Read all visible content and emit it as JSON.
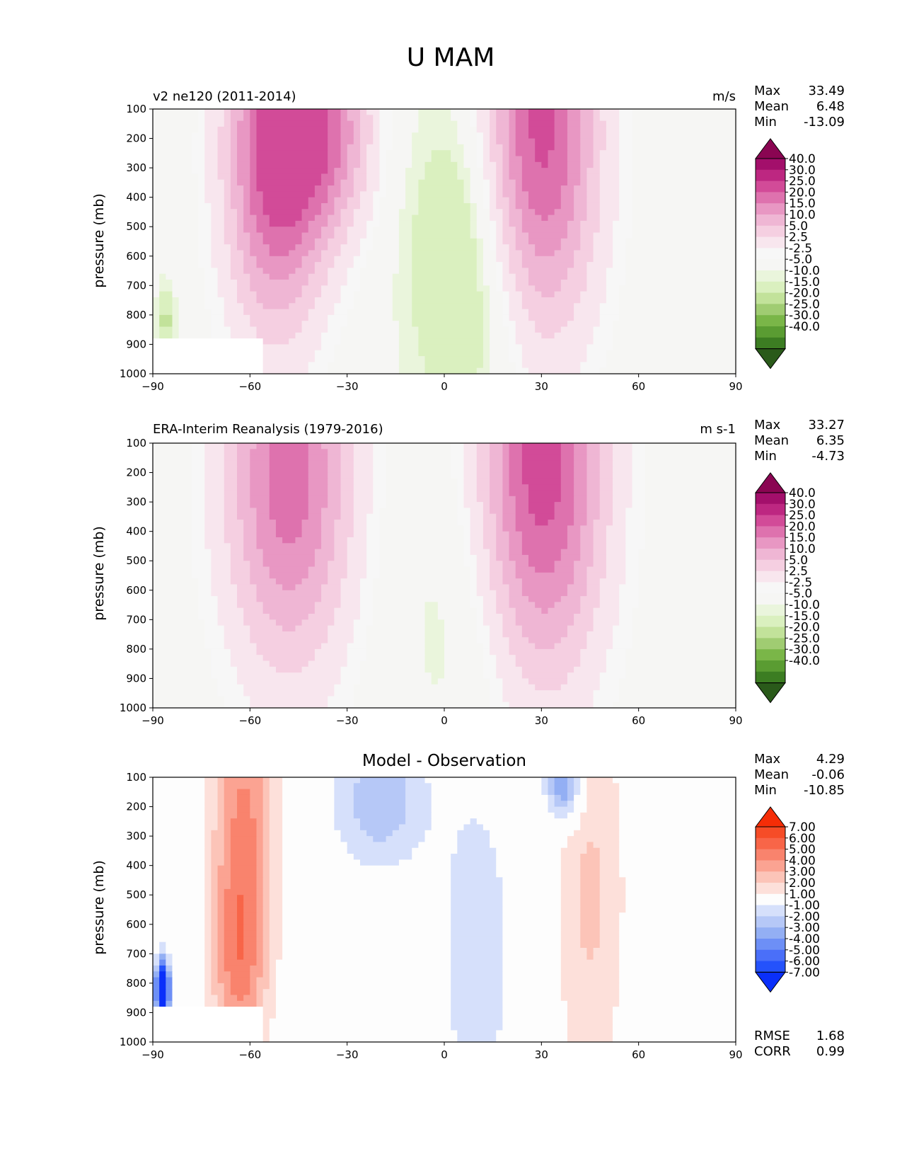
{
  "figure_title": "U MAM",
  "colors": {
    "model_obs": [
      "#2a5a1a",
      "#3c7d22",
      "#5a9c32",
      "#7ab648",
      "#a0cc72",
      "#c2e29a",
      "#daf0bf",
      "#eaf5dc",
      "#f6f6f4",
      "#f7f7f7",
      "#f8e6ee",
      "#f5cfe1",
      "#efb6d4",
      "#e897c3",
      "#de72ae",
      "#d24b98",
      "#bd2781",
      "#a30f6b",
      "#8a0552"
    ],
    "diff": [
      "#0a2ffa",
      "#2452fb",
      "#4a6ff9",
      "#6d8ff6",
      "#93aff4",
      "#b6c8f7",
      "#d6e0fb",
      "#fdfdfd",
      "#fde0da",
      "#fcc4b8",
      "#fba392",
      "#f9836d",
      "#f86548",
      "#f64c27",
      "#f52d07"
    ]
  },
  "chart_data": [
    {
      "id": "model",
      "type": "contour",
      "title": "v2 ne120 (2011-2014)",
      "units": "m/s",
      "xlabel": "",
      "ylabel": "pressure (mb)",
      "xlim": [
        -90,
        90
      ],
      "ylim": [
        1000,
        100
      ],
      "xticks": [
        "−90",
        "−60",
        "−30",
        "0",
        "30",
        "60",
        "90"
      ],
      "yticks": [
        "100",
        "200",
        "300",
        "400",
        "500",
        "600",
        "700",
        "800",
        "900",
        "1000"
      ],
      "stats": [
        {
          "label": "Max",
          "value": "33.49"
        },
        {
          "label": "Mean",
          "value": "6.48"
        },
        {
          "label": "Min",
          "value": "-13.09"
        }
      ],
      "colorbar": {
        "palette": "model_obs",
        "levels": [
          "40.0",
          "30.0",
          "25.0",
          "20.0",
          "15.0",
          "10.0",
          "5.0",
          "2.5",
          "-2.5",
          "-5.0",
          "-10.0",
          "-15.0",
          "-20.0",
          "-25.0",
          "-30.0",
          "-40.0"
        ]
      },
      "features": [
        {
          "lat": -52,
          "p": 250,
          "peak": 33.49,
          "sx": 11,
          "sp": 420
        },
        {
          "lat": -35,
          "p": 180,
          "peak": 20,
          "sx": 10,
          "sp": 250
        },
        {
          "lat": 29,
          "p": 190,
          "peak": 33,
          "sx": 13,
          "sp": 480
        },
        {
          "lat": 7,
          "p": 600,
          "peak": -13,
          "sx": 13,
          "sp": 420
        },
        {
          "lat": -86,
          "p": 820,
          "peak": -12,
          "sx": 2,
          "sp": 90
        }
      ],
      "missing": {
        "lat_max": -55,
        "p_min": 870
      }
    },
    {
      "id": "obs",
      "type": "contour",
      "title": "ERA-Interim Reanalysis (1979-2016)",
      "units": "m s-1",
      "xlabel": "",
      "ylabel": "pressure (mb)",
      "xlim": [
        -90,
        90
      ],
      "ylim": [
        1000,
        100
      ],
      "xticks": [
        "−90",
        "−60",
        "−30",
        "0",
        "30",
        "60",
        "90"
      ],
      "yticks": [
        "100",
        "200",
        "300",
        "400",
        "500",
        "600",
        "700",
        "800",
        "900",
        "1000"
      ],
      "stats": [
        {
          "label": "Max",
          "value": "33.27"
        },
        {
          "label": "Mean",
          "value": "6.35"
        },
        {
          "label": "Min",
          "value": "-4.73"
        }
      ],
      "colorbar": {
        "palette": "model_obs",
        "levels": [
          "40.0",
          "30.0",
          "25.0",
          "20.0",
          "15.0",
          "10.0",
          "5.0",
          "2.5",
          "-2.5",
          "-5.0",
          "-10.0",
          "-15.0",
          "-20.0",
          "-25.0",
          "-30.0",
          "-40.0"
        ]
      },
      "features": [
        {
          "lat": -48,
          "p": 220,
          "peak": 28,
          "sx": 14,
          "sp": 460
        },
        {
          "lat": 30,
          "p": 190,
          "peak": 33.27,
          "sx": 14,
          "sp": 500
        },
        {
          "lat": 5,
          "p": 650,
          "peak": -4.7,
          "sx": 14,
          "sp": 420
        }
      ],
      "missing": null
    },
    {
      "id": "diff",
      "type": "contour",
      "title": "Model - Observation",
      "units": "",
      "xlabel": "",
      "ylabel": "pressure (mb)",
      "xlim": [
        -90,
        90
      ],
      "ylim": [
        1000,
        100
      ],
      "xticks": [
        "−90",
        "−60",
        "−30",
        "0",
        "30",
        "60",
        "90"
      ],
      "yticks": [
        "100",
        "200",
        "300",
        "400",
        "500",
        "600",
        "700",
        "800",
        "900",
        "1000"
      ],
      "stats": [
        {
          "label": "Max",
          "value": "4.29"
        },
        {
          "label": "Mean",
          "value": "-0.06"
        },
        {
          "label": "Min",
          "value": "-10.85"
        }
      ],
      "stats_bottom": [
        {
          "label": "RMSE",
          "value": "1.68"
        },
        {
          "label": "CORR",
          "value": "0.99"
        }
      ],
      "colorbar": {
        "palette": "diff",
        "levels": [
          "7.00",
          "6.00",
          "5.00",
          "4.00",
          "3.00",
          "2.00",
          "1.00",
          "-1.00",
          "-2.00",
          "-3.00",
          "-4.00",
          "-5.00",
          "-6.00",
          "-7.00"
        ]
      },
      "features": [
        {
          "lat": -62,
          "p": 300,
          "peak": 4.29,
          "sx": 7,
          "sp": 420
        },
        {
          "lat": -64,
          "p": 760,
          "peak": 2.5,
          "sx": 6,
          "sp": 220
        },
        {
          "lat": 45,
          "p": 500,
          "peak": 2.2,
          "sx": 8,
          "sp": 500
        },
        {
          "lat": -20,
          "p": 180,
          "peak": -2.8,
          "sx": 10,
          "sp": 160
        },
        {
          "lat": 10,
          "p": 700,
          "peak": -1.6,
          "sx": 9,
          "sp": 450
        },
        {
          "lat": 37,
          "p": 130,
          "peak": -4.5,
          "sx": 4,
          "sp": 90
        },
        {
          "lat": -87,
          "p": 820,
          "peak": -10.85,
          "sx": 1.5,
          "sp": 70
        }
      ],
      "missing": {
        "lat_max": -55,
        "p_min": 870
      }
    }
  ]
}
